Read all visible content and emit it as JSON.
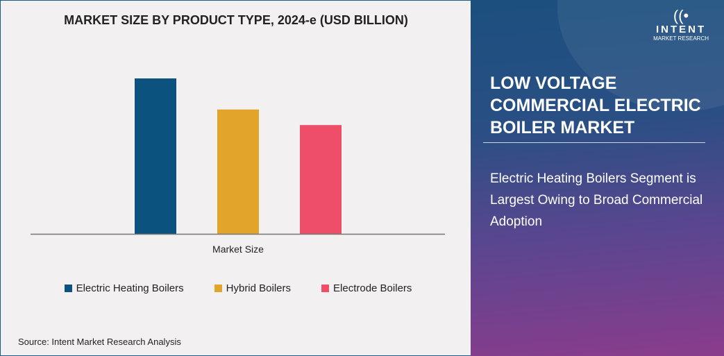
{
  "chart_data": {
    "type": "bar",
    "title": "MARKET SIZE BY PRODUCT TYPE, 2024-e (USD BILLION)",
    "categories": [
      "Market Size"
    ],
    "xlabel": "Market Size",
    "ylabel": "",
    "ylim": [
      0,
      100
    ],
    "grid": false,
    "legend_position": "bottom",
    "series": [
      {
        "name": "Electric Heating Boilers",
        "values": [
          100
        ],
        "color": "#0b527e"
      },
      {
        "name": "Hybrid Boilers",
        "values": [
          80
        ],
        "color": "#e2a52c"
      },
      {
        "name": "Electrode Boilers",
        "values": [
          70
        ],
        "color": "#ef4e68"
      }
    ]
  },
  "source": "Source: Intent Market Research Analysis",
  "panel": {
    "logo_brand": "INTENT",
    "logo_sub": "MARKET RESEARCH",
    "title": "LOW VOLTAGE COMMERCIAL ELECTRIC BOILER MARKET",
    "subtitle": "Electric Heating Boilers Segment is Largest Owing to Broad Commercial Adoption"
  }
}
